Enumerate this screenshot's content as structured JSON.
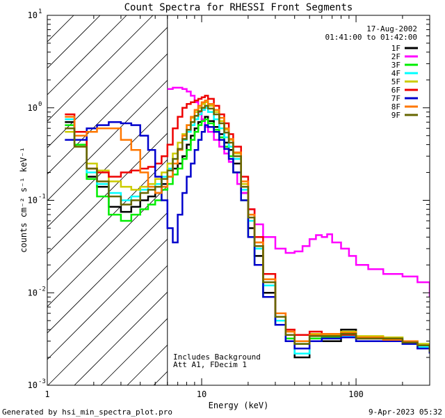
{
  "chart_data": {
    "type": "line",
    "title": "Count Spectra for RHESSI Front Segments",
    "xlabel": "Energy (keV)",
    "ylabel": "counts cm⁻² s⁻¹ keV⁻¹",
    "xscale": "log",
    "yscale": "log",
    "xlim": [
      1,
      300
    ],
    "ylim": [
      0.001,
      10
    ],
    "x_ticks": [
      {
        "value": 1,
        "label": "1"
      },
      {
        "value": 10,
        "label": "10"
      },
      {
        "value": 100,
        "label": "100"
      }
    ],
    "y_ticks": [
      {
        "value": 0.001,
        "base": "10",
        "exp": "-3"
      },
      {
        "value": 0.01,
        "base": "10",
        "exp": "-2"
      },
      {
        "value": 0.1,
        "base": "10",
        "exp": "-1"
      },
      {
        "value": 1,
        "base": "10",
        "exp": "0"
      },
      {
        "value": 10,
        "base": "10",
        "exp": "1"
      }
    ],
    "date_label": "17-Aug-2002",
    "time_label": "01:41:00 to 01:42:00",
    "hatched_region_kev": [
      1,
      6
    ],
    "annotation_line1": "Includes Background",
    "annotation_line2": "Att A1, FDecim 1",
    "series": [
      {
        "name": "1F",
        "color": "#000000",
        "x": [
          1.3,
          1.5,
          1.8,
          2.1,
          2.5,
          3.0,
          3.5,
          4.0,
          4.5,
          5.0,
          5.5,
          6.0,
          6.5,
          7.0,
          7.5,
          8.0,
          8.5,
          9.0,
          9.5,
          10,
          10.5,
          11,
          12,
          13,
          14,
          15,
          16,
          18,
          20,
          22,
          25,
          30,
          35,
          40,
          50,
          60,
          80,
          100,
          150,
          200,
          250,
          300
        ],
        "y": [
          0.7,
          0.45,
          0.18,
          0.14,
          0.085,
          0.075,
          0.085,
          0.1,
          0.11,
          0.12,
          0.15,
          0.18,
          0.22,
          0.25,
          0.3,
          0.4,
          0.5,
          0.6,
          0.7,
          0.75,
          0.8,
          0.72,
          0.62,
          0.52,
          0.42,
          0.35,
          0.25,
          0.12,
          0.05,
          0.025,
          0.01,
          0.005,
          0.003,
          0.002,
          0.0035,
          0.003,
          0.004,
          0.0033,
          0.003,
          0.0028,
          0.0025,
          0.0022
        ]
      },
      {
        "name": "2F",
        "color": "#ff00ff",
        "x": [
          6.0,
          6.5,
          7.0,
          7.5,
          8.0,
          8.5,
          9.0,
          9.5,
          10,
          10.5,
          11,
          12,
          13,
          14,
          15,
          16,
          17,
          18,
          20,
          22,
          25,
          30,
          35,
          40,
          45,
          50,
          55,
          60,
          65,
          70,
          80,
          90,
          100,
          120,
          150,
          200,
          250,
          300
        ],
        "y": [
          1.6,
          1.65,
          1.65,
          1.6,
          1.5,
          1.35,
          1.15,
          0.9,
          0.75,
          0.62,
          0.55,
          0.45,
          0.38,
          0.32,
          0.26,
          0.2,
          0.15,
          0.12,
          0.08,
          0.055,
          0.04,
          0.03,
          0.027,
          0.028,
          0.032,
          0.038,
          0.042,
          0.04,
          0.043,
          0.035,
          0.03,
          0.025,
          0.02,
          0.018,
          0.016,
          0.015,
          0.013,
          0.009
        ]
      },
      {
        "name": "3F",
        "color": "#00ee00",
        "x": [
          1.3,
          1.5,
          1.8,
          2.1,
          2.5,
          3.0,
          3.5,
          4.0,
          4.5,
          5.0,
          5.5,
          6.0,
          6.5,
          7.0,
          7.5,
          8.0,
          8.5,
          9.0,
          9.5,
          10,
          10.5,
          11,
          12,
          13,
          14,
          15,
          16,
          18,
          20,
          22,
          25,
          30,
          35,
          40,
          50,
          60,
          80,
          100,
          150,
          200,
          250,
          300
        ],
        "y": [
          0.65,
          0.4,
          0.17,
          0.11,
          0.07,
          0.06,
          0.07,
          0.08,
          0.09,
          0.1,
          0.13,
          0.15,
          0.19,
          0.22,
          0.28,
          0.35,
          0.45,
          0.55,
          0.65,
          0.72,
          0.75,
          0.68,
          0.58,
          0.48,
          0.38,
          0.3,
          0.2,
          0.1,
          0.04,
          0.02,
          0.009,
          0.0045,
          0.0032,
          0.0028,
          0.0032,
          0.0033,
          0.0035,
          0.0032,
          0.0033,
          0.003,
          0.0028,
          0.0024
        ]
      },
      {
        "name": "4F",
        "color": "#00ffff",
        "x": [
          1.3,
          1.5,
          1.8,
          2.1,
          2.5,
          3.0,
          3.5,
          4.0,
          4.5,
          5.0,
          5.5,
          6.0,
          6.5,
          7.0,
          7.5,
          8.0,
          8.5,
          9.0,
          9.5,
          10,
          10.5,
          11,
          12,
          13,
          14,
          15,
          16,
          18,
          20,
          22,
          25,
          30,
          35,
          40,
          50,
          60,
          80,
          100,
          150,
          200,
          250,
          300
        ],
        "y": [
          0.75,
          0.45,
          0.2,
          0.15,
          0.12,
          0.1,
          0.11,
          0.13,
          0.14,
          0.15,
          0.18,
          0.22,
          0.28,
          0.35,
          0.45,
          0.55,
          0.65,
          0.75,
          0.85,
          0.95,
          1.0,
          0.9,
          0.75,
          0.6,
          0.48,
          0.38,
          0.28,
          0.13,
          0.06,
          0.03,
          0.012,
          0.005,
          0.003,
          0.0022,
          0.003,
          0.0032,
          0.0034,
          0.003,
          0.0031,
          0.0028,
          0.0026,
          0.0023
        ]
      },
      {
        "name": "5F",
        "color": "#cccc00",
        "x": [
          1.3,
          1.5,
          1.8,
          2.1,
          2.5,
          3.0,
          3.5,
          4.0,
          4.5,
          5.0,
          5.5,
          6.0,
          6.5,
          7.0,
          7.5,
          8.0,
          8.5,
          9.0,
          9.5,
          10,
          10.5,
          11,
          12,
          13,
          14,
          15,
          16,
          18,
          20,
          22,
          25,
          30,
          35,
          40,
          50,
          60,
          80,
          100,
          150,
          200,
          250,
          300
        ],
        "y": [
          0.55,
          0.38,
          0.25,
          0.21,
          0.16,
          0.14,
          0.13,
          0.14,
          0.15,
          0.17,
          0.2,
          0.25,
          0.32,
          0.42,
          0.52,
          0.65,
          0.78,
          0.9,
          1.0,
          1.1,
          1.15,
          1.05,
          0.9,
          0.72,
          0.58,
          0.45,
          0.32,
          0.15,
          0.07,
          0.035,
          0.014,
          0.006,
          0.0038,
          0.003,
          0.0036,
          0.0035,
          0.0038,
          0.0034,
          0.0033,
          0.003,
          0.0028,
          0.0025
        ]
      },
      {
        "name": "6F",
        "color": "#ee0000",
        "x": [
          1.3,
          1.5,
          1.8,
          2.1,
          2.5,
          3.0,
          3.5,
          4.0,
          4.5,
          5.0,
          5.5,
          6.0,
          6.5,
          7.0,
          7.5,
          8.0,
          8.5,
          9.0,
          9.5,
          10,
          10.5,
          11,
          12,
          13,
          14,
          15,
          16,
          18,
          20,
          22,
          25,
          30,
          35,
          40,
          50,
          60,
          80,
          100,
          150,
          200,
          250,
          300
        ],
        "y": [
          0.85,
          0.55,
          0.22,
          0.2,
          0.18,
          0.2,
          0.21,
          0.22,
          0.23,
          0.25,
          0.3,
          0.4,
          0.6,
          0.8,
          1.0,
          1.1,
          1.15,
          1.2,
          1.25,
          1.3,
          1.35,
          1.25,
          1.05,
          0.85,
          0.68,
          0.52,
          0.38,
          0.18,
          0.08,
          0.04,
          0.016,
          0.006,
          0.004,
          0.0035,
          0.0038,
          0.0036,
          0.0035,
          0.0032,
          0.0031,
          0.003,
          0.0027,
          0.0024
        ]
      },
      {
        "name": "7F",
        "color": "#0000cc",
        "x": [
          1.3,
          1.5,
          1.8,
          2.1,
          2.5,
          3.0,
          3.5,
          4.0,
          4.5,
          5.0,
          5.5,
          6.0,
          6.5,
          7.0,
          7.5,
          8.0,
          8.5,
          9.0,
          9.5,
          10,
          10.5,
          11,
          12,
          13,
          14,
          15,
          16,
          18,
          20,
          22,
          25,
          30,
          35,
          40,
          50,
          60,
          80,
          100,
          150,
          200,
          250,
          300
        ],
        "y": [
          0.45,
          0.45,
          0.6,
          0.65,
          0.7,
          0.68,
          0.65,
          0.5,
          0.35,
          0.18,
          0.1,
          0.05,
          0.035,
          0.07,
          0.12,
          0.18,
          0.25,
          0.35,
          0.45,
          0.55,
          0.65,
          0.62,
          0.55,
          0.45,
          0.36,
          0.28,
          0.2,
          0.1,
          0.04,
          0.02,
          0.009,
          0.0045,
          0.003,
          0.0025,
          0.003,
          0.0032,
          0.0033,
          0.003,
          0.003,
          0.0028,
          0.0025,
          0.0022
        ]
      },
      {
        "name": "8F",
        "color": "#ff7700",
        "x": [
          1.3,
          1.5,
          1.8,
          2.1,
          2.5,
          3.0,
          3.5,
          4.0,
          4.5,
          5.0,
          5.5,
          6.0,
          6.5,
          7.0,
          7.5,
          8.0,
          8.5,
          9.0,
          9.5,
          10,
          10.5,
          11,
          12,
          13,
          14,
          15,
          16,
          18,
          20,
          22,
          25,
          30,
          35,
          40,
          50,
          60,
          80,
          100,
          150,
          200,
          250,
          300
        ],
        "y": [
          0.8,
          0.5,
          0.55,
          0.6,
          0.6,
          0.45,
          0.35,
          0.2,
          0.14,
          0.12,
          0.14,
          0.18,
          0.25,
          0.35,
          0.5,
          0.65,
          0.8,
          0.95,
          1.05,
          1.15,
          1.2,
          1.1,
          0.95,
          0.78,
          0.6,
          0.46,
          0.33,
          0.16,
          0.07,
          0.035,
          0.014,
          0.006,
          0.0038,
          0.003,
          0.0035,
          0.0036,
          0.0037,
          0.0033,
          0.0031,
          0.003,
          0.0027,
          0.0024
        ]
      },
      {
        "name": "9F",
        "color": "#666600",
        "x": [
          1.3,
          1.5,
          1.8,
          2.1,
          2.5,
          3.0,
          3.5,
          4.0,
          4.5,
          5.0,
          5.5,
          6.0,
          6.5,
          7.0,
          7.5,
          8.0,
          8.5,
          9.0,
          9.5,
          10,
          10.5,
          11,
          12,
          13,
          14,
          15,
          16,
          18,
          20,
          22,
          25,
          30,
          35,
          40,
          50,
          60,
          80,
          100,
          150,
          200,
          250,
          300
        ],
        "y": [
          0.6,
          0.38,
          0.22,
          0.16,
          0.11,
          0.09,
          0.1,
          0.12,
          0.13,
          0.14,
          0.17,
          0.21,
          0.28,
          0.36,
          0.46,
          0.58,
          0.7,
          0.82,
          0.92,
          1.0,
          1.05,
          0.98,
          0.85,
          0.68,
          0.54,
          0.42,
          0.3,
          0.14,
          0.065,
          0.032,
          0.013,
          0.0055,
          0.0035,
          0.0028,
          0.0034,
          0.0034,
          0.0036,
          0.0032,
          0.0032,
          0.0029,
          0.0027,
          0.0023
        ]
      }
    ]
  },
  "footer": {
    "generator": "Generated by hsi_min_spectra_plot.pro",
    "timestamp": "9-Apr-2023 05:32"
  }
}
